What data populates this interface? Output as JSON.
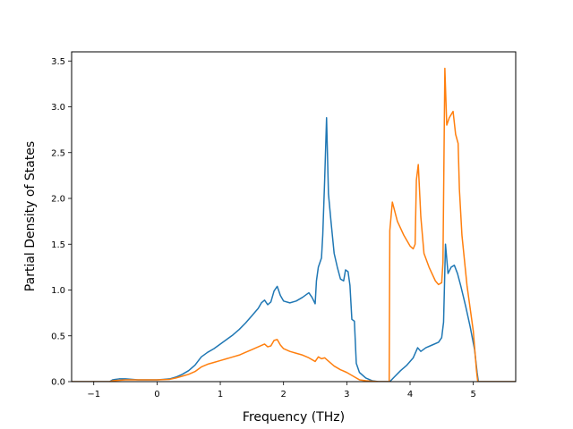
{
  "chart_data": {
    "type": "line",
    "xlabel": "Frequency (THz)",
    "ylabel": "Partial Density of States",
    "xlim": [
      -1.35,
      5.67
    ],
    "ylim": [
      0.0,
      3.6
    ],
    "xticks": [
      "−1",
      "0",
      "1",
      "2",
      "3",
      "4",
      "5"
    ],
    "xtick_values": [
      -1,
      0,
      1,
      2,
      3,
      4,
      5
    ],
    "yticks": [
      "0.0",
      "0.5",
      "1.0",
      "1.5",
      "2.0",
      "2.5",
      "3.0",
      "3.5"
    ],
    "ytick_values": [
      0.0,
      0.5,
      1.0,
      1.5,
      2.0,
      2.5,
      3.0,
      3.5
    ],
    "grid": false,
    "series": [
      {
        "color": "#1f77b4",
        "points": [
          [
            -1.35,
            0.0
          ],
          [
            -0.75,
            0.0
          ],
          [
            -0.7,
            0.02
          ],
          [
            -0.6,
            0.03
          ],
          [
            -0.5,
            0.03
          ],
          [
            -0.3,
            0.02
          ],
          [
            -0.1,
            0.02
          ],
          [
            0.0,
            0.02
          ],
          [
            0.1,
            0.025
          ],
          [
            0.2,
            0.03
          ],
          [
            0.3,
            0.05
          ],
          [
            0.4,
            0.08
          ],
          [
            0.5,
            0.12
          ],
          [
            0.6,
            0.18
          ],
          [
            0.7,
            0.27
          ],
          [
            0.8,
            0.32
          ],
          [
            0.9,
            0.36
          ],
          [
            1.0,
            0.41
          ],
          [
            1.1,
            0.46
          ],
          [
            1.2,
            0.51
          ],
          [
            1.3,
            0.57
          ],
          [
            1.4,
            0.64
          ],
          [
            1.5,
            0.72
          ],
          [
            1.6,
            0.8
          ],
          [
            1.65,
            0.86
          ],
          [
            1.7,
            0.89
          ],
          [
            1.75,
            0.84
          ],
          [
            1.8,
            0.87
          ],
          [
            1.85,
            0.99
          ],
          [
            1.9,
            1.04
          ],
          [
            1.95,
            0.94
          ],
          [
            2.0,
            0.88
          ],
          [
            2.1,
            0.86
          ],
          [
            2.2,
            0.88
          ],
          [
            2.3,
            0.92
          ],
          [
            2.4,
            0.97
          ],
          [
            2.45,
            0.92
          ],
          [
            2.5,
            0.85
          ],
          [
            2.52,
            1.1
          ],
          [
            2.55,
            1.25
          ],
          [
            2.6,
            1.35
          ],
          [
            2.62,
            1.6
          ],
          [
            2.65,
            2.2
          ],
          [
            2.68,
            2.88
          ],
          [
            2.71,
            2.05
          ],
          [
            2.75,
            1.75
          ],
          [
            2.8,
            1.4
          ],
          [
            2.85,
            1.25
          ],
          [
            2.9,
            1.12
          ],
          [
            2.95,
            1.1
          ],
          [
            2.98,
            1.22
          ],
          [
            3.02,
            1.2
          ],
          [
            3.05,
            1.05
          ],
          [
            3.08,
            0.68
          ],
          [
            3.12,
            0.66
          ],
          [
            3.15,
            0.2
          ],
          [
            3.2,
            0.1
          ],
          [
            3.3,
            0.04
          ],
          [
            3.4,
            0.01
          ],
          [
            3.5,
            0.0
          ],
          [
            3.68,
            0.0
          ],
          [
            3.75,
            0.05
          ],
          [
            3.85,
            0.12
          ],
          [
            3.95,
            0.18
          ],
          [
            4.05,
            0.26
          ],
          [
            4.12,
            0.37
          ],
          [
            4.17,
            0.33
          ],
          [
            4.25,
            0.37
          ],
          [
            4.35,
            0.4
          ],
          [
            4.45,
            0.43
          ],
          [
            4.5,
            0.48
          ],
          [
            4.53,
            0.65
          ],
          [
            4.56,
            1.5
          ],
          [
            4.6,
            1.18
          ],
          [
            4.65,
            1.25
          ],
          [
            4.7,
            1.27
          ],
          [
            4.75,
            1.18
          ],
          [
            4.8,
            1.05
          ],
          [
            4.88,
            0.82
          ],
          [
            4.95,
            0.6
          ],
          [
            5.02,
            0.35
          ],
          [
            5.06,
            0.1
          ],
          [
            5.08,
            0.0
          ],
          [
            5.67,
            0.0
          ]
        ]
      },
      {
        "color": "#ff7f0e",
        "points": [
          [
            -1.35,
            0.0
          ],
          [
            -0.75,
            0.0
          ],
          [
            -0.7,
            0.01
          ],
          [
            -0.5,
            0.02
          ],
          [
            -0.2,
            0.02
          ],
          [
            0.0,
            0.02
          ],
          [
            0.2,
            0.025
          ],
          [
            0.3,
            0.04
          ],
          [
            0.4,
            0.06
          ],
          [
            0.5,
            0.08
          ],
          [
            0.6,
            0.11
          ],
          [
            0.7,
            0.16
          ],
          [
            0.8,
            0.19
          ],
          [
            0.9,
            0.21
          ],
          [
            1.0,
            0.23
          ],
          [
            1.1,
            0.25
          ],
          [
            1.2,
            0.27
          ],
          [
            1.3,
            0.29
          ],
          [
            1.4,
            0.32
          ],
          [
            1.5,
            0.35
          ],
          [
            1.6,
            0.38
          ],
          [
            1.7,
            0.41
          ],
          [
            1.75,
            0.38
          ],
          [
            1.8,
            0.39
          ],
          [
            1.85,
            0.45
          ],
          [
            1.9,
            0.46
          ],
          [
            1.95,
            0.4
          ],
          [
            2.0,
            0.36
          ],
          [
            2.1,
            0.33
          ],
          [
            2.2,
            0.31
          ],
          [
            2.3,
            0.29
          ],
          [
            2.4,
            0.26
          ],
          [
            2.5,
            0.22
          ],
          [
            2.55,
            0.27
          ],
          [
            2.6,
            0.25
          ],
          [
            2.65,
            0.26
          ],
          [
            2.7,
            0.23
          ],
          [
            2.8,
            0.17
          ],
          [
            2.9,
            0.13
          ],
          [
            3.0,
            0.1
          ],
          [
            3.1,
            0.06
          ],
          [
            3.2,
            0.02
          ],
          [
            3.3,
            0.01
          ],
          [
            3.5,
            0.0
          ],
          [
            3.67,
            0.0
          ],
          [
            3.68,
            1.65
          ],
          [
            3.72,
            1.96
          ],
          [
            3.8,
            1.75
          ],
          [
            3.9,
            1.6
          ],
          [
            4.0,
            1.48
          ],
          [
            4.05,
            1.45
          ],
          [
            4.08,
            1.5
          ],
          [
            4.1,
            2.2
          ],
          [
            4.13,
            2.37
          ],
          [
            4.17,
            1.8
          ],
          [
            4.22,
            1.4
          ],
          [
            4.3,
            1.25
          ],
          [
            4.4,
            1.1
          ],
          [
            4.45,
            1.06
          ],
          [
            4.5,
            1.08
          ],
          [
            4.52,
            1.3
          ],
          [
            4.55,
            3.42
          ],
          [
            4.58,
            2.8
          ],
          [
            4.62,
            2.88
          ],
          [
            4.68,
            2.95
          ],
          [
            4.72,
            2.7
          ],
          [
            4.76,
            2.6
          ],
          [
            4.78,
            2.1
          ],
          [
            4.82,
            1.6
          ],
          [
            4.9,
            1.05
          ],
          [
            5.0,
            0.55
          ],
          [
            5.05,
            0.12
          ],
          [
            5.07,
            0.0
          ],
          [
            5.67,
            0.0
          ]
        ]
      }
    ]
  }
}
